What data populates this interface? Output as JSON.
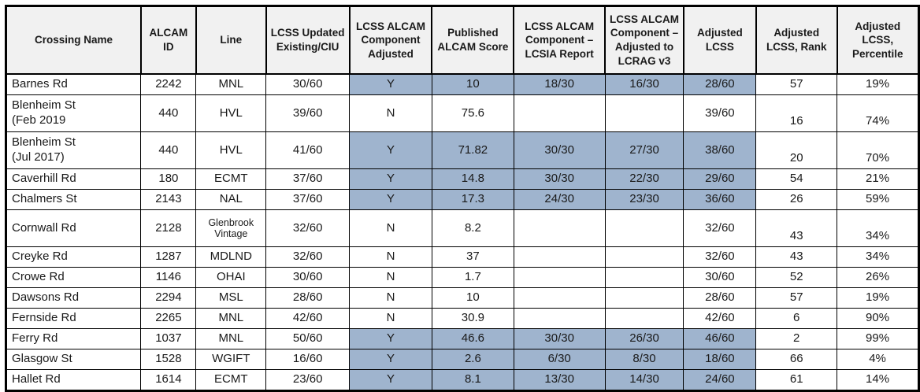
{
  "table": {
    "title": "ALCAM crossing scores table",
    "header_bg": "#f1f1f1",
    "highlight_color": "#9fb4ce",
    "columns": [
      {
        "key": "crossing_name",
        "label": "Crossing Name"
      },
      {
        "key": "alcam_id",
        "label": "ALCAM ID"
      },
      {
        "key": "line",
        "label": "Line"
      },
      {
        "key": "lcss_updated",
        "label": "LCSS Updated Existing/CIU"
      },
      {
        "key": "component_adjusted",
        "label": "LCSS ALCAM Component Adjusted"
      },
      {
        "key": "published_score",
        "label": "Published ALCAM Score"
      },
      {
        "key": "lcsia_report",
        "label": "LCSS ALCAM Component – LCSIA Report"
      },
      {
        "key": "lcrag_v3",
        "label": "LCSS ALCAM Component – Adjusted to LCRAG v3"
      },
      {
        "key": "adjusted_lcss",
        "label": "Adjusted LCSS"
      },
      {
        "key": "rank",
        "label": "Adjusted LCSS, Rank"
      },
      {
        "key": "percentile",
        "label": "Adjusted LCSS, Percentile"
      }
    ],
    "highlight_keys": [
      "component_adjusted",
      "published_score",
      "lcsia_report",
      "lcrag_v3",
      "adjusted_lcss"
    ],
    "rows": [
      {
        "crossing_name": "Barnes Rd",
        "alcam_id": "2242",
        "line": "MNL",
        "lcss_updated": "30/60",
        "component_adjusted": "Y",
        "published_score": "10",
        "lcsia_report": "18/30",
        "lcrag_v3": "16/30",
        "adjusted_lcss": "28/60",
        "rank": "57",
        "percentile": "19%",
        "highlighted": true,
        "tall": false
      },
      {
        "crossing_name": "Blenheim St\n(Feb 2019",
        "alcam_id": "440",
        "line": "HVL",
        "lcss_updated": "39/60",
        "component_adjusted": "N",
        "published_score": "75.6",
        "lcsia_report": "",
        "lcrag_v3": "",
        "adjusted_lcss": "39/60",
        "rank": "16",
        "percentile": "74%",
        "highlighted": false,
        "tall": true
      },
      {
        "crossing_name": "Blenheim St\n(Jul 2017)",
        "alcam_id": "440",
        "line": "HVL",
        "lcss_updated": "41/60",
        "component_adjusted": "Y",
        "published_score": "71.82",
        "lcsia_report": "30/30",
        "lcrag_v3": "27/30",
        "adjusted_lcss": "38/60",
        "rank": "20",
        "percentile": "70%",
        "highlighted": true,
        "tall": true
      },
      {
        "crossing_name": "Caverhill Rd",
        "alcam_id": "180",
        "line": "ECMT",
        "lcss_updated": "37/60",
        "component_adjusted": "Y",
        "published_score": "14.8",
        "lcsia_report": "30/30",
        "lcrag_v3": "22/30",
        "adjusted_lcss": "29/60",
        "rank": "54",
        "percentile": "21%",
        "highlighted": true,
        "tall": false
      },
      {
        "crossing_name": "Chalmers St",
        "alcam_id": "2143",
        "line": "NAL",
        "lcss_updated": "37/60",
        "component_adjusted": "Y",
        "published_score": "17.3",
        "lcsia_report": "24/30",
        "lcrag_v3": "23/30",
        "adjusted_lcss": "36/60",
        "rank": "26",
        "percentile": "59%",
        "highlighted": true,
        "tall": false
      },
      {
        "crossing_name": "Cornwall Rd",
        "alcam_id": "2128",
        "line": "Glenbrook\nVintage",
        "lcss_updated": "32/60",
        "component_adjusted": "N",
        "published_score": "8.2",
        "lcsia_report": "",
        "lcrag_v3": "",
        "adjusted_lcss": "32/60",
        "rank": "43",
        "percentile": "34%",
        "highlighted": false,
        "tall": true
      },
      {
        "crossing_name": "Creyke Rd",
        "alcam_id": "1287",
        "line": "MDLND",
        "lcss_updated": "32/60",
        "component_adjusted": "N",
        "published_score": "37",
        "lcsia_report": "",
        "lcrag_v3": "",
        "adjusted_lcss": "32/60",
        "rank": "43",
        "percentile": "34%",
        "highlighted": false,
        "tall": false
      },
      {
        "crossing_name": "Crowe Rd",
        "alcam_id": "1146",
        "line": "OHAI",
        "lcss_updated": "30/60",
        "component_adjusted": "N",
        "published_score": "1.7",
        "lcsia_report": "",
        "lcrag_v3": "",
        "adjusted_lcss": "30/60",
        "rank": "52",
        "percentile": "26%",
        "highlighted": false,
        "tall": false
      },
      {
        "crossing_name": "Dawsons Rd",
        "alcam_id": "2294",
        "line": "MSL",
        "lcss_updated": "28/60",
        "component_adjusted": "N",
        "published_score": "10",
        "lcsia_report": "",
        "lcrag_v3": "",
        "adjusted_lcss": "28/60",
        "rank": "57",
        "percentile": "19%",
        "highlighted": false,
        "tall": false
      },
      {
        "crossing_name": "Fernside Rd",
        "alcam_id": "2265",
        "line": "MNL",
        "lcss_updated": "42/60",
        "component_adjusted": "N",
        "published_score": "30.9",
        "lcsia_report": "",
        "lcrag_v3": "",
        "adjusted_lcss": "42/60",
        "rank": "6",
        "percentile": "90%",
        "highlighted": false,
        "tall": false
      },
      {
        "crossing_name": "Ferry Rd",
        "alcam_id": "1037",
        "line": "MNL",
        "lcss_updated": "50/60",
        "component_adjusted": "Y",
        "published_score": "46.6",
        "lcsia_report": "30/30",
        "lcrag_v3": "26/30",
        "adjusted_lcss": "46/60",
        "rank": "2",
        "percentile": "99%",
        "highlighted": true,
        "tall": false
      },
      {
        "crossing_name": "Glasgow St",
        "alcam_id": "1528",
        "line": "WGIFT",
        "lcss_updated": "16/60",
        "component_adjusted": "Y",
        "published_score": "2.6",
        "lcsia_report": "6/30",
        "lcrag_v3": "8/30",
        "adjusted_lcss": "18/60",
        "rank": "66",
        "percentile": "4%",
        "highlighted": true,
        "tall": false
      },
      {
        "crossing_name": "Hallet Rd",
        "alcam_id": "1614",
        "line": "ECMT",
        "lcss_updated": "23/60",
        "component_adjusted": "Y",
        "published_score": "8.1",
        "lcsia_report": "13/30",
        "lcrag_v3": "14/30",
        "adjusted_lcss": "24/60",
        "rank": "61",
        "percentile": "14%",
        "highlighted": true,
        "tall": false
      }
    ]
  }
}
